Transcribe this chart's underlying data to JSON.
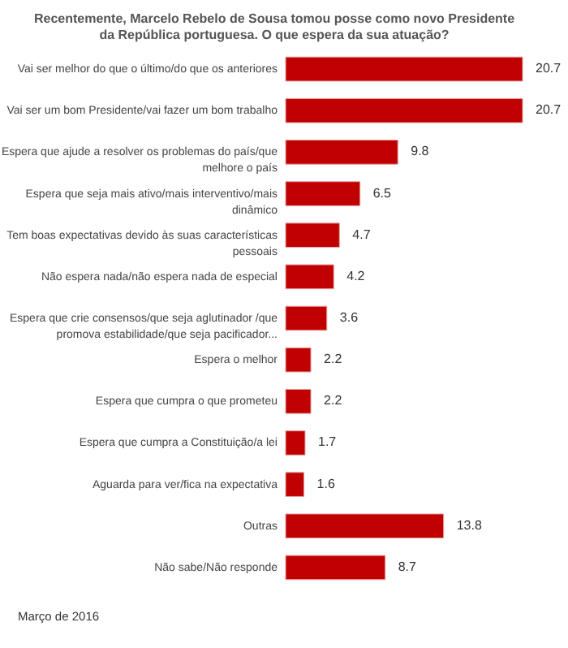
{
  "chart_data": {
    "type": "bar",
    "orientation": "horizontal",
    "title": "Recentemente, Marcelo Rebelo de Sousa tomou posse como novo Presidente da República portuguesa. O que espera da sua atuação?",
    "categories": [
      "Vai ser melhor do que o último/do que os anteriores",
      "Vai ser um bom Presidente/vai fazer um bom trabalho",
      "Espera que ajude a resolver os problemas do país/que melhore o país",
      "Espera que seja mais ativo/mais interventivo/mais dinâmico",
      "Tem boas expectativas devido às suas características pessoais",
      "Não espera nada/não espera nada de especial",
      "Espera que crie consensos/que seja aglutinador /que promova estabilidade/que seja pacificador...",
      "Espera o melhor",
      "Espera que cumpra o que prometeu",
      "Espera que cumpra a Constituição/a lei",
      "Aguarda para ver/fica na expectativa",
      "Outras",
      "Não sabe/Não responde"
    ],
    "values": [
      20.7,
      20.7,
      9.8,
      6.5,
      4.7,
      4.2,
      3.6,
      2.2,
      2.2,
      1.7,
      1.6,
      13.8,
      8.7
    ],
    "color": "#c00000",
    "data_labels": true,
    "grid": false,
    "annotations": [
      "Março de 2016"
    ]
  }
}
